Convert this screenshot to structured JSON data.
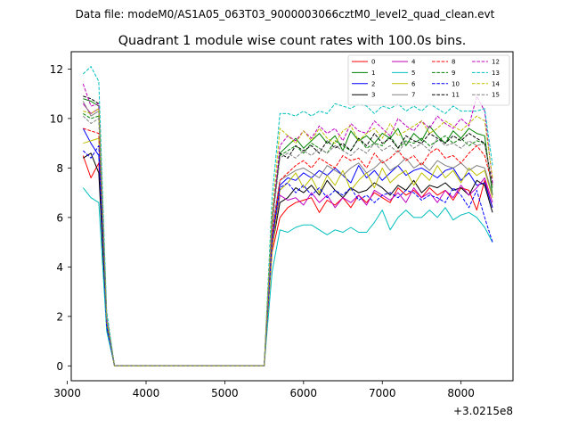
{
  "suptitle": "Data file: modeM0/AS1A05_063T03_9000003066cztM0_level2_quad_clean.evt",
  "chart_data": {
    "type": "line",
    "title": "Quadrant 1 module wise count rates with 100.0s bins.",
    "xlabel": "",
    "ylabel": "",
    "offset_text": "+3.0215e8",
    "xlim": [
      3050,
      8660
    ],
    "ylim": [
      -0.6,
      12.7
    ],
    "xticks": [
      3000,
      4000,
      5000,
      6000,
      7000,
      8000
    ],
    "yticks": [
      0,
      2,
      4,
      6,
      8,
      10,
      12
    ],
    "grid": false,
    "legend_position": "top-right",
    "x": [
      3200,
      3300,
      3400,
      3500,
      3600,
      3700,
      3800,
      3900,
      4000,
      4100,
      4200,
      4300,
      4400,
      4500,
      4600,
      4700,
      4800,
      4900,
      5000,
      5100,
      5200,
      5300,
      5400,
      5500,
      5600,
      5700,
      5800,
      5900,
      6000,
      6100,
      6200,
      6300,
      6400,
      6500,
      6600,
      6700,
      6800,
      6900,
      7000,
      7100,
      7200,
      7300,
      7400,
      7500,
      7600,
      7700,
      7800,
      7900,
      8000,
      8100,
      8200,
      8300,
      8400
    ],
    "series": [
      {
        "name": "0",
        "color": "#ff0000",
        "dash": "solid",
        "values": [
          8.5,
          7.6,
          8.2,
          1.5,
          0,
          0,
          0,
          0,
          0,
          0,
          0,
          0,
          0,
          0,
          0,
          0,
          0,
          0,
          0,
          0,
          0,
          0,
          0,
          0,
          4.6,
          6.0,
          6.4,
          6.6,
          6.7,
          6.8,
          6.2,
          6.7,
          6.5,
          6.8,
          6.4,
          6.9,
          6.6,
          7.0,
          6.8,
          6.6,
          7.2,
          6.9,
          7.1,
          6.8,
          7.2,
          6.9,
          7.1,
          6.7,
          7.2,
          7.1,
          6.3,
          7.5,
          6.4
        ]
      },
      {
        "name": "1",
        "color": "#008000",
        "dash": "solid",
        "values": [
          10.8,
          10.7,
          10.5,
          1.9,
          0,
          0,
          0,
          0,
          0,
          0,
          0,
          0,
          0,
          0,
          0,
          0,
          0,
          0,
          0,
          0,
          0,
          0,
          0,
          0,
          5.9,
          8.6,
          8.9,
          9.2,
          8.8,
          9.1,
          9.4,
          9.0,
          9.3,
          8.7,
          9.5,
          9.1,
          9.3,
          9.0,
          9.4,
          9.2,
          9.6,
          8.9,
          9.4,
          9.1,
          9.7,
          9.3,
          9.0,
          9.5,
          9.2,
          9.6,
          9.4,
          9.3,
          6.9
        ]
      },
      {
        "name": "2",
        "color": "#0000ff",
        "dash": "solid",
        "values": [
          9.6,
          9.0,
          8.5,
          1.7,
          0,
          0,
          0,
          0,
          0,
          0,
          0,
          0,
          0,
          0,
          0,
          0,
          0,
          0,
          0,
          0,
          0,
          0,
          0,
          0,
          5.1,
          7.3,
          7.6,
          7.5,
          7.8,
          7.6,
          7.9,
          7.7,
          8.0,
          7.7,
          7.4,
          8.1,
          7.6,
          7.9,
          7.5,
          7.8,
          8.1,
          7.7,
          7.9,
          8.0,
          7.8,
          7.6,
          7.9,
          8.0,
          7.5,
          7.8,
          7.3,
          7.4,
          6.4
        ]
      },
      {
        "name": "3",
        "color": "#000000",
        "dash": "solid",
        "values": [
          8.4,
          8.6,
          7.8,
          1.6,
          0,
          0,
          0,
          0,
          0,
          0,
          0,
          0,
          0,
          0,
          0,
          0,
          0,
          0,
          0,
          0,
          0,
          0,
          0,
          0,
          4.8,
          6.6,
          6.8,
          7.2,
          7.0,
          7.3,
          6.9,
          7.5,
          7.1,
          6.8,
          7.2,
          7.0,
          7.1,
          7.4,
          7.2,
          6.9,
          7.3,
          7.1,
          7.5,
          7.0,
          7.3,
          7.2,
          7.4,
          7.1,
          7.2,
          6.9,
          7.5,
          7.3,
          6.2
        ]
      },
      {
        "name": "4",
        "color": "#bf00bf",
        "dash": "solid",
        "values": [
          10.6,
          10.2,
          10.4,
          1.8,
          0,
          0,
          0,
          0,
          0,
          0,
          0,
          0,
          0,
          0,
          0,
          0,
          0,
          0,
          0,
          0,
          0,
          0,
          0,
          0,
          4.9,
          6.9,
          6.7,
          6.8,
          6.5,
          7.0,
          6.6,
          6.9,
          6.4,
          6.8,
          6.6,
          6.9,
          6.5,
          7.1,
          6.9,
          6.7,
          7.0,
          6.6,
          7.2,
          6.8,
          7.0,
          6.6,
          7.1,
          6.8,
          7.3,
          6.9,
          7.2,
          7.6,
          6.6
        ]
      },
      {
        "name": "5",
        "color": "#00bfbf",
        "dash": "solid",
        "values": [
          7.2,
          6.8,
          6.6,
          1.4,
          0,
          0,
          0,
          0,
          0,
          0,
          0,
          0,
          0,
          0,
          0,
          0,
          0,
          0,
          0,
          0,
          0,
          0,
          0,
          0,
          3.8,
          5.5,
          5.4,
          5.6,
          5.7,
          5.7,
          5.5,
          5.3,
          5.5,
          5.4,
          5.6,
          5.4,
          5.4,
          5.8,
          6.3,
          5.5,
          6.0,
          6.3,
          6.0,
          6.0,
          6.3,
          6.0,
          6.4,
          5.9,
          6.1,
          6.2,
          6.0,
          5.6,
          5.0
        ]
      },
      {
        "name": "6",
        "color": "#bfbf00",
        "dash": "solid",
        "values": [
          9.0,
          9.1,
          9.2,
          1.7,
          0,
          0,
          0,
          0,
          0,
          0,
          0,
          0,
          0,
          0,
          0,
          0,
          0,
          0,
          0,
          0,
          0,
          0,
          0,
          0,
          4.7,
          7.1,
          7.4,
          7.8,
          7.2,
          7.6,
          7.0,
          7.7,
          7.3,
          7.9,
          7.1,
          7.5,
          7.8,
          7.2,
          8.0,
          7.4,
          7.7,
          7.9,
          7.3,
          7.8,
          7.5,
          8.1,
          7.6,
          7.9,
          7.4,
          8.0,
          7.7,
          7.9,
          6.8
        ]
      },
      {
        "name": "7",
        "color": "#808080",
        "dash": "solid",
        "values": [
          10.7,
          10.1,
          10.3,
          1.9,
          0,
          0,
          0,
          0,
          0,
          0,
          0,
          0,
          0,
          0,
          0,
          0,
          0,
          0,
          0,
          0,
          0,
          0,
          0,
          0,
          5.5,
          7.5,
          7.7,
          7.9,
          8.0,
          7.8,
          7.6,
          8.1,
          7.9,
          7.7,
          8.0,
          8.2,
          7.8,
          8.0,
          8.3,
          7.9,
          8.1,
          8.4,
          8.0,
          8.2,
          7.9,
          8.3,
          8.1,
          8.0,
          8.2,
          7.9,
          8.1,
          8.0,
          6.9
        ]
      },
      {
        "name": "8",
        "color": "#ff0000",
        "dash": "dashed",
        "values": [
          9.6,
          9.5,
          9.4,
          1.8,
          0,
          0,
          0,
          0,
          0,
          0,
          0,
          0,
          0,
          0,
          0,
          0,
          0,
          0,
          0,
          0,
          0,
          0,
          0,
          0,
          5.3,
          7.5,
          7.8,
          8.1,
          8.3,
          8.0,
          8.4,
          8.2,
          8.0,
          8.5,
          8.3,
          8.4,
          8.0,
          8.6,
          8.2,
          8.4,
          8.7,
          8.3,
          8.5,
          8.1,
          8.6,
          8.8,
          8.4,
          8.5,
          8.2,
          8.6,
          8.9,
          8.5,
          7.3
        ]
      },
      {
        "name": "9",
        "color": "#008000",
        "dash": "dashed",
        "values": [
          10.2,
          10.0,
          10.1,
          1.9,
          0,
          0,
          0,
          0,
          0,
          0,
          0,
          0,
          0,
          0,
          0,
          0,
          0,
          0,
          0,
          0,
          0,
          0,
          0,
          0,
          5.8,
          8.5,
          8.7,
          8.9,
          8.6,
          9.0,
          8.8,
          8.6,
          9.1,
          8.9,
          8.7,
          9.2,
          8.8,
          9.0,
          8.9,
          9.3,
          8.8,
          9.1,
          9.0,
          9.2,
          8.9,
          9.1,
          9.3,
          9.0,
          9.2,
          8.9,
          9.1,
          9.0,
          7.2
        ]
      },
      {
        "name": "10",
        "color": "#0000ff",
        "dash": "dashed",
        "values": [
          8.7,
          8.4,
          8.9,
          1.6,
          0,
          0,
          0,
          0,
          0,
          0,
          0,
          0,
          0,
          0,
          0,
          0,
          0,
          0,
          0,
          0,
          0,
          0,
          0,
          0,
          5.0,
          7.2,
          7.4,
          7.0,
          7.3,
          6.9,
          7.2,
          6.8,
          7.1,
          6.9,
          7.2,
          6.7,
          6.9,
          6.6,
          6.9,
          7.0,
          6.8,
          7.1,
          7.0,
          6.7,
          6.9,
          6.8,
          6.6,
          7.2,
          6.9,
          6.4,
          7.1,
          6.0,
          5.0
        ]
      },
      {
        "name": "11",
        "color": "#000000",
        "dash": "dashed",
        "values": [
          10.9,
          10.8,
          10.6,
          2.0,
          0,
          0,
          0,
          0,
          0,
          0,
          0,
          0,
          0,
          0,
          0,
          0,
          0,
          0,
          0,
          0,
          0,
          0,
          0,
          0,
          6.0,
          8.6,
          8.4,
          8.9,
          8.7,
          8.9,
          8.6,
          9.1,
          8.8,
          9.0,
          8.7,
          9.2,
          8.9,
          9.4,
          9.0,
          9.2,
          8.8,
          9.3,
          9.1,
          9.0,
          9.4,
          9.2,
          9.0,
          9.3,
          9.1,
          9.4,
          9.2,
          9.0,
          7.3
        ]
      },
      {
        "name": "12",
        "color": "#bf00bf",
        "dash": "dashed",
        "values": [
          11.4,
          10.5,
          10.6,
          2.0,
          0,
          0,
          0,
          0,
          0,
          0,
          0,
          0,
          0,
          0,
          0,
          0,
          0,
          0,
          0,
          0,
          0,
          0,
          0,
          0,
          5.9,
          8.9,
          9.3,
          9.1,
          9.5,
          9.2,
          9.7,
          9.4,
          9.6,
          9.1,
          9.8,
          9.5,
          9.4,
          9.9,
          9.6,
          9.3,
          10.0,
          9.7,
          9.5,
          9.9,
          9.6,
          10.1,
          9.8,
          9.6,
          10.0,
          9.7,
          10.9,
          10.3,
          7.4
        ]
      },
      {
        "name": "13",
        "color": "#00bfbf",
        "dash": "dashed",
        "values": [
          11.8,
          12.1,
          11.5,
          2.2,
          0,
          0,
          0,
          0,
          0,
          0,
          0,
          0,
          0,
          0,
          0,
          0,
          0,
          0,
          0,
          0,
          0,
          0,
          0,
          0,
          6.8,
          10.2,
          10.2,
          10.1,
          10.3,
          10.1,
          10.3,
          10.2,
          10.6,
          10.5,
          10.4,
          10.6,
          10.5,
          10.2,
          10.5,
          10.4,
          10.6,
          10.3,
          10.5,
          10.3,
          10.6,
          10.4,
          10.2,
          10.5,
          10.3,
          10.3,
          10.3,
          10.4,
          8.1
        ]
      },
      {
        "name": "14",
        "color": "#bfbf00",
        "dash": "dashed",
        "values": [
          10.3,
          10.2,
          10.4,
          1.9,
          0,
          0,
          0,
          0,
          0,
          0,
          0,
          0,
          0,
          0,
          0,
          0,
          0,
          0,
          0,
          0,
          0,
          0,
          0,
          0,
          6.1,
          9.6,
          9.3,
          9.0,
          9.5,
          9.1,
          9.6,
          9.2,
          9.0,
          9.5,
          9.7,
          9.1,
          9.4,
          9.6,
          9.2,
          9.8,
          9.3,
          9.5,
          9.7,
          9.9,
          9.4,
          9.6,
          9.9,
          9.7,
          9.5,
          9.8,
          10.1,
          9.9,
          7.6
        ]
      },
      {
        "name": "15",
        "color": "#808080",
        "dash": "dashed",
        "values": [
          10.1,
          9.8,
          10.0,
          1.9,
          0,
          0,
          0,
          0,
          0,
          0,
          0,
          0,
          0,
          0,
          0,
          0,
          0,
          0,
          0,
          0,
          0,
          0,
          0,
          0,
          5.7,
          8.4,
          8.6,
          8.4,
          8.7,
          8.5,
          8.8,
          8.6,
          8.9,
          8.7,
          8.5,
          8.8,
          8.6,
          9.0,
          8.7,
          8.9,
          8.6,
          9.1,
          8.8,
          9.0,
          8.7,
          9.2,
          8.9,
          9.0,
          8.8,
          9.1,
          8.9,
          9.0,
          7.2
        ]
      }
    ]
  }
}
